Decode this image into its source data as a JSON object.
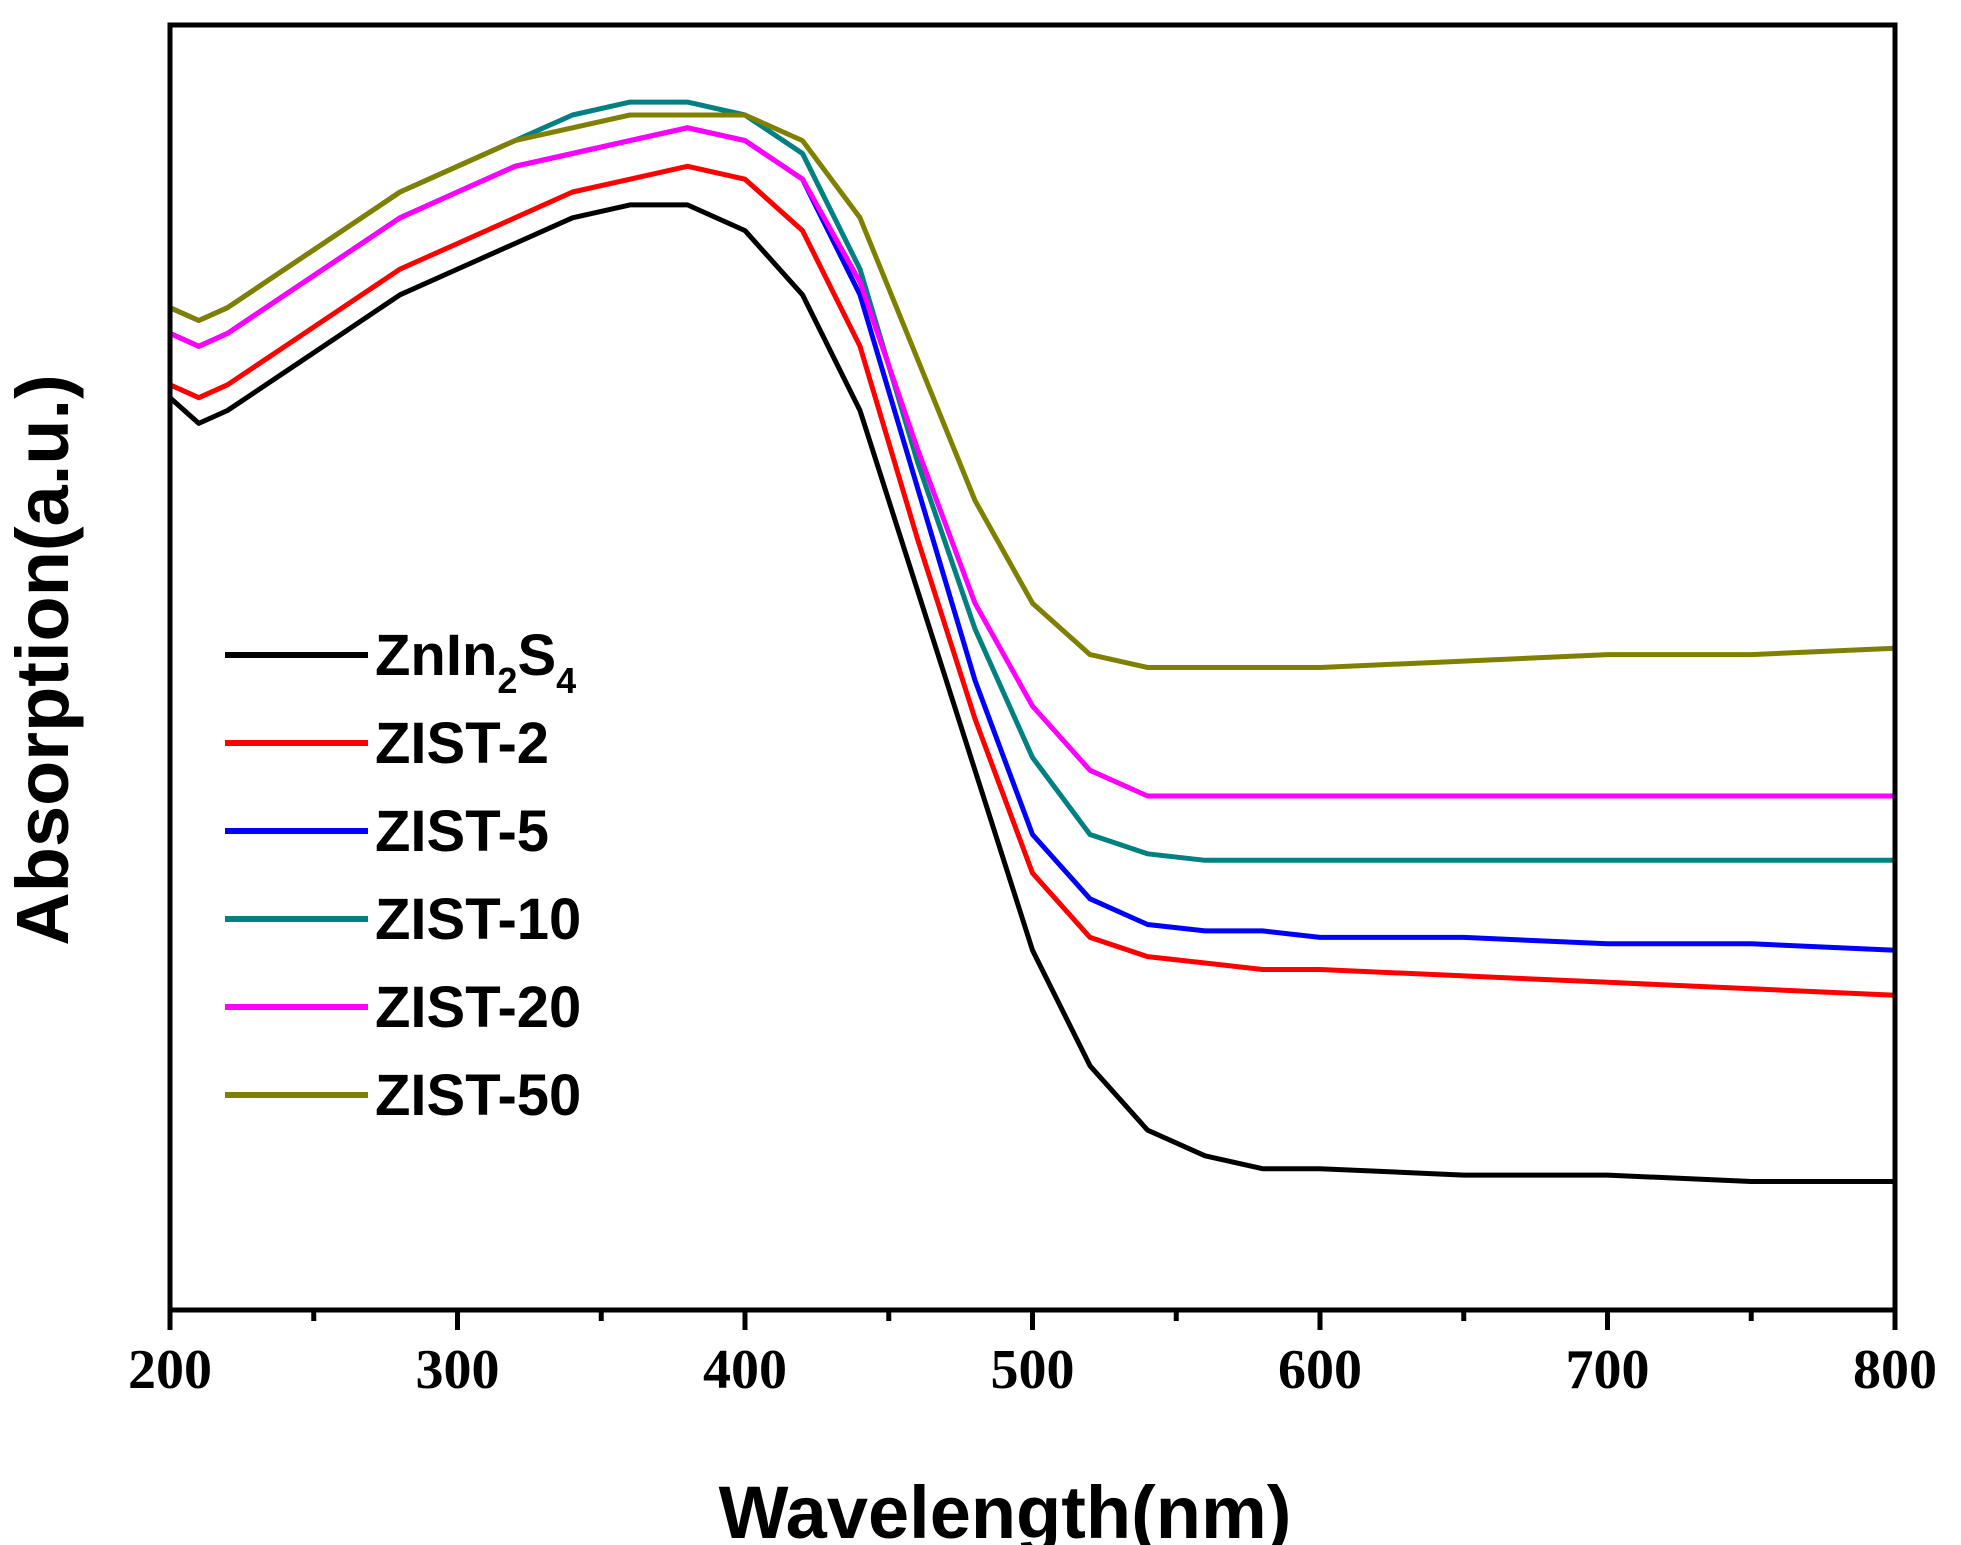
{
  "chart_data": {
    "type": "line",
    "title": "",
    "xlabel": "Wavelength(nm)",
    "ylabel": "Absorption(a.u.)",
    "xlim": [
      200,
      800
    ],
    "ylim": [
      0,
      1.0
    ],
    "xticks": [
      200,
      300,
      400,
      500,
      600,
      700,
      800
    ],
    "xtick_labels": [
      "200",
      "300",
      "400",
      "500",
      "600",
      "700",
      "800"
    ],
    "yticks_shown": false,
    "grid": false,
    "legend_position": "left-middle",
    "series": [
      {
        "name": "ZnIn2S4",
        "label_main": "ZnIn",
        "label_sub1": "2",
        "label_mid": "S",
        "label_sub2": "4",
        "color": "#000000",
        "x": [
          200,
          210,
          220,
          240,
          260,
          280,
          300,
          320,
          340,
          360,
          380,
          400,
          420,
          440,
          460,
          480,
          500,
          520,
          540,
          560,
          580,
          600,
          650,
          700,
          750,
          800
        ],
        "y": [
          0.71,
          0.69,
          0.7,
          0.73,
          0.76,
          0.79,
          0.81,
          0.83,
          0.85,
          0.86,
          0.86,
          0.84,
          0.79,
          0.7,
          0.56,
          0.42,
          0.28,
          0.19,
          0.14,
          0.12,
          0.11,
          0.11,
          0.105,
          0.105,
          0.1,
          0.1
        ]
      },
      {
        "name": "ZIST-2",
        "color": "#ff0000",
        "x": [
          200,
          210,
          220,
          240,
          260,
          280,
          300,
          320,
          340,
          360,
          380,
          400,
          420,
          440,
          460,
          480,
          500,
          520,
          540,
          560,
          580,
          600,
          650,
          700,
          750,
          800
        ],
        "y": [
          0.72,
          0.71,
          0.72,
          0.75,
          0.78,
          0.81,
          0.83,
          0.85,
          0.87,
          0.88,
          0.89,
          0.88,
          0.84,
          0.75,
          0.6,
          0.46,
          0.34,
          0.29,
          0.275,
          0.27,
          0.265,
          0.265,
          0.26,
          0.255,
          0.25,
          0.245
        ]
      },
      {
        "name": "ZIST-5",
        "color": "#0000ff",
        "x": [
          200,
          210,
          220,
          240,
          260,
          280,
          300,
          320,
          340,
          360,
          380,
          400,
          420,
          440,
          460,
          480,
          500,
          520,
          540,
          560,
          580,
          600,
          650,
          700,
          750,
          800
        ],
        "y": [
          0.76,
          0.75,
          0.76,
          0.79,
          0.82,
          0.85,
          0.87,
          0.89,
          0.9,
          0.91,
          0.92,
          0.91,
          0.88,
          0.79,
          0.64,
          0.49,
          0.37,
          0.32,
          0.3,
          0.295,
          0.295,
          0.29,
          0.29,
          0.285,
          0.285,
          0.28
        ]
      },
      {
        "name": "ZIST-10",
        "color": "#008080",
        "x": [
          200,
          210,
          220,
          240,
          260,
          280,
          300,
          320,
          340,
          360,
          380,
          400,
          420,
          440,
          460,
          480,
          500,
          520,
          540,
          560,
          580,
          600,
          650,
          700,
          750,
          800
        ],
        "y": [
          0.78,
          0.77,
          0.78,
          0.81,
          0.84,
          0.87,
          0.89,
          0.91,
          0.93,
          0.94,
          0.94,
          0.93,
          0.9,
          0.81,
          0.66,
          0.53,
          0.43,
          0.37,
          0.355,
          0.35,
          0.35,
          0.35,
          0.35,
          0.35,
          0.35,
          0.35
        ]
      },
      {
        "name": "ZIST-20",
        "color": "#ff00ff",
        "x": [
          200,
          210,
          220,
          240,
          260,
          280,
          300,
          320,
          340,
          360,
          380,
          400,
          420,
          440,
          460,
          480,
          500,
          520,
          540,
          560,
          580,
          600,
          650,
          700,
          750,
          800
        ],
        "y": [
          0.76,
          0.75,
          0.76,
          0.79,
          0.82,
          0.85,
          0.87,
          0.89,
          0.9,
          0.91,
          0.92,
          0.91,
          0.88,
          0.8,
          0.67,
          0.55,
          0.47,
          0.42,
          0.4,
          0.4,
          0.4,
          0.4,
          0.4,
          0.4,
          0.4,
          0.4
        ]
      },
      {
        "name": "ZIST-50",
        "color": "#808000",
        "x": [
          200,
          210,
          220,
          240,
          260,
          280,
          300,
          320,
          340,
          360,
          380,
          400,
          420,
          440,
          460,
          480,
          500,
          520,
          540,
          560,
          580,
          600,
          650,
          700,
          750,
          800
        ],
        "y": [
          0.78,
          0.77,
          0.78,
          0.81,
          0.84,
          0.87,
          0.89,
          0.91,
          0.92,
          0.93,
          0.93,
          0.93,
          0.91,
          0.85,
          0.74,
          0.63,
          0.55,
          0.51,
          0.5,
          0.5,
          0.5,
          0.5,
          0.505,
          0.51,
          0.51,
          0.515
        ]
      }
    ]
  }
}
